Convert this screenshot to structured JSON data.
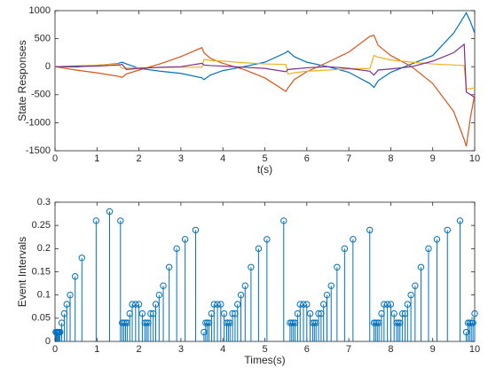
{
  "chart_data": [
    {
      "type": "line",
      "y_label": "State Responses",
      "x_label": "t(s)",
      "xlim": [
        0,
        10
      ],
      "xticks": [
        0,
        1,
        2,
        3,
        4,
        5,
        6,
        7,
        8,
        9,
        10
      ],
      "ylim": [
        -1500,
        1000
      ],
      "yticks": [
        -1500,
        -1000,
        -500,
        0,
        500,
        1000
      ],
      "x": [
        0,
        0.5,
        1,
        1.5,
        1.6,
        1.7,
        2,
        2.5,
        3,
        3.5,
        3.55,
        3.7,
        4,
        4.5,
        5,
        5.5,
        5.55,
        5.7,
        6,
        6.5,
        7,
        7.5,
        7.6,
        7.7,
        8,
        8.5,
        9,
        9.5,
        9.75,
        9.8,
        9.9,
        10
      ],
      "series": [
        {
          "color": "#0072bd",
          "values": [
            0,
            -5,
            20,
            60,
            80,
            50,
            -30,
            -80,
            -120,
            -200,
            -230,
            -150,
            -70,
            0,
            80,
            250,
            280,
            180,
            80,
            0,
            -100,
            -300,
            -370,
            -250,
            -100,
            50,
            200,
            600,
            900,
            960,
            800,
            600
          ]
        },
        {
          "color": "#d95319",
          "values": [
            0,
            -60,
            -110,
            -170,
            -190,
            -130,
            -60,
            50,
            180,
            340,
            250,
            150,
            60,
            -50,
            -200,
            -440,
            -380,
            -230,
            -90,
            80,
            260,
            540,
            560,
            380,
            200,
            0,
            -300,
            -800,
            -1300,
            -1420,
            -900,
            -500
          ]
        },
        {
          "color": "#edb120",
          "values": [
            0,
            15,
            30,
            50,
            -30,
            -25,
            -20,
            -15,
            -10,
            -10,
            130,
            110,
            100,
            70,
            50,
            40,
            -130,
            -110,
            -80,
            -60,
            -40,
            -30,
            200,
            170,
            120,
            80,
            50,
            30,
            20,
            -400,
            -390,
            -380
          ]
        },
        {
          "color": "#7e2f8e",
          "values": [
            0,
            5,
            10,
            30,
            40,
            -50,
            -30,
            -10,
            0,
            60,
            30,
            20,
            10,
            -10,
            -30,
            -90,
            -50,
            -40,
            -20,
            0,
            -30,
            -80,
            -150,
            -60,
            -40,
            0,
            100,
            250,
            400,
            -450,
            -500,
            -550
          ]
        }
      ]
    },
    {
      "type": "stem",
      "y_label": "Event Intervals",
      "x_label": "Times(s)",
      "xlim": [
        0,
        10
      ],
      "xticks": [
        0,
        1,
        2,
        3,
        4,
        5,
        6,
        7,
        8,
        9,
        10
      ],
      "ylim": [
        0,
        0.3
      ],
      "yticks": [
        0,
        0.05,
        0.1,
        0.15,
        0.2,
        0.25,
        0.3
      ],
      "color": "#0072bd",
      "x": [
        0.02,
        0.04,
        0.06,
        0.08,
        0.1,
        0.12,
        0.16,
        0.22,
        0.28,
        0.36,
        0.48,
        0.64,
        0.98,
        1.3,
        1.56,
        1.6,
        1.64,
        1.68,
        1.72,
        1.78,
        1.84,
        1.92,
        2.0,
        2.08,
        2.14,
        2.18,
        2.22,
        2.28,
        2.34,
        2.4,
        2.48,
        2.58,
        2.72,
        2.9,
        3.1,
        3.35,
        3.55,
        3.59,
        3.63,
        3.67,
        3.73,
        3.79,
        3.87,
        3.95,
        4.03,
        4.09,
        4.13,
        4.17,
        4.23,
        4.29,
        4.35,
        4.43,
        4.53,
        4.67,
        4.85,
        5.05,
        5.45,
        5.6,
        5.64,
        5.68,
        5.72,
        5.78,
        5.84,
        5.92,
        6.0,
        6.08,
        6.14,
        6.18,
        6.22,
        6.28,
        6.34,
        6.4,
        6.48,
        6.58,
        6.72,
        6.9,
        7.1,
        7.5,
        7.6,
        7.64,
        7.68,
        7.72,
        7.78,
        7.84,
        7.92,
        8.0,
        8.08,
        8.14,
        8.18,
        8.22,
        8.28,
        8.34,
        8.4,
        8.48,
        8.58,
        8.72,
        8.9,
        9.1,
        9.35,
        9.65,
        9.8,
        9.84,
        9.88,
        9.92,
        9.96,
        10
      ],
      "values": [
        0.02,
        0.02,
        0.02,
        0.02,
        0.02,
        0.02,
        0.04,
        0.06,
        0.08,
        0.1,
        0.14,
        0.18,
        0.26,
        0.28,
        0.26,
        0.04,
        0.04,
        0.04,
        0.04,
        0.06,
        0.08,
        0.08,
        0.08,
        0.06,
        0.04,
        0.04,
        0.04,
        0.06,
        0.06,
        0.08,
        0.1,
        0.12,
        0.16,
        0.2,
        0.22,
        0.24,
        0.02,
        0.04,
        0.04,
        0.04,
        0.06,
        0.08,
        0.08,
        0.08,
        0.06,
        0.04,
        0.04,
        0.04,
        0.06,
        0.06,
        0.08,
        0.1,
        0.12,
        0.16,
        0.2,
        0.22,
        0.26,
        0.04,
        0.04,
        0.04,
        0.04,
        0.06,
        0.08,
        0.08,
        0.08,
        0.06,
        0.04,
        0.04,
        0.04,
        0.06,
        0.06,
        0.08,
        0.1,
        0.12,
        0.16,
        0.2,
        0.22,
        0.24,
        0.04,
        0.04,
        0.04,
        0.04,
        0.06,
        0.08,
        0.08,
        0.08,
        0.06,
        0.04,
        0.04,
        0.04,
        0.06,
        0.06,
        0.08,
        0.1,
        0.12,
        0.16,
        0.2,
        0.22,
        0.24,
        0.26,
        0.02,
        0.04,
        0.04,
        0.04,
        0.04,
        0.06
      ]
    }
  ]
}
